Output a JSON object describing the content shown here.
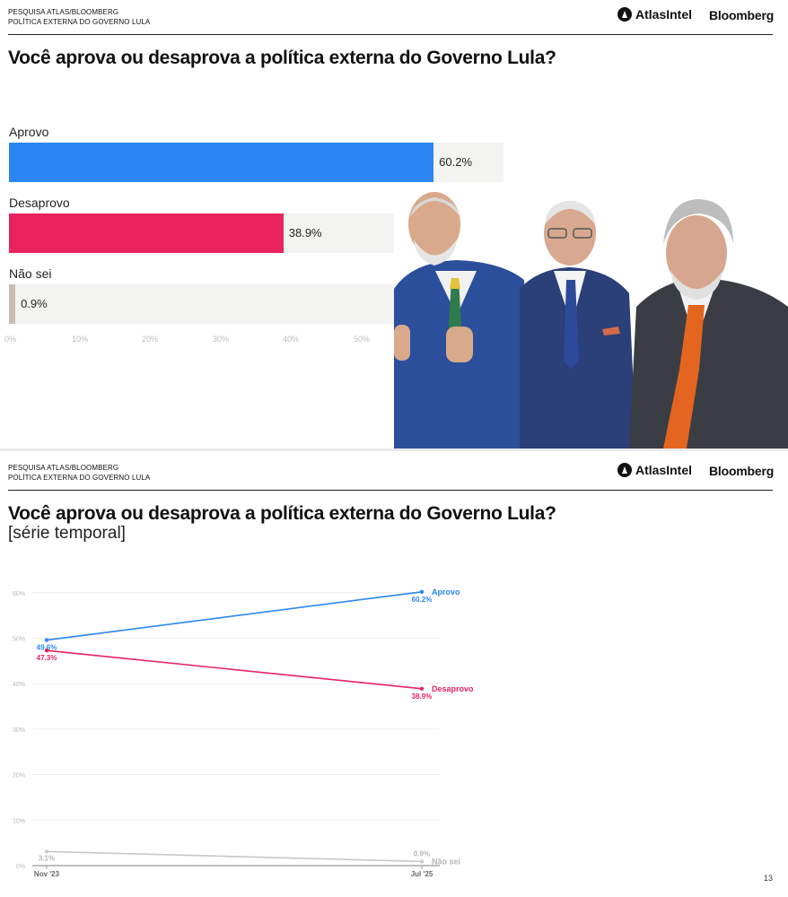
{
  "header": {
    "kicker_line1": "PESQUISA ATLAS/BLOOMBERG",
    "kicker_line2": "POLÍTICA EXTERNA DO GOVERNO LULA",
    "brand_atlas": "AtlasIntel",
    "brand_bloomberg": "Bloomberg"
  },
  "slide1": {
    "title": "Você aprova ou desaprova a política externa do Governo Lula?"
  },
  "slide2": {
    "title": "Você aprova ou desaprova a política externa do Governo Lula?",
    "subtitle": "[série temporal]"
  },
  "page_number": "13",
  "colors": {
    "aprovo": "#2b86f3",
    "desaprovo": "#e8235f",
    "nao_sei": "#c9bcb2",
    "nao_sei_line": "#c8c8c8"
  },
  "chart_data": [
    {
      "type": "bar",
      "orientation": "horizontal",
      "categories": [
        "Aprovo",
        "Desaprovo",
        "Não sei"
      ],
      "values": [
        60.2,
        38.9,
        0.9
      ],
      "value_labels": [
        "60.2%",
        "38.9%",
        "0.9%"
      ],
      "xlim": [
        0,
        70
      ],
      "x_ticks": [
        "0%",
        "10%",
        "20%",
        "30%",
        "40%",
        "50%"
      ]
    },
    {
      "type": "line",
      "x": [
        "Nov '23",
        "Jul '25"
      ],
      "ylim": [
        0,
        60
      ],
      "y_ticks": [
        "0%",
        "10%",
        "20%",
        "30%",
        "40%",
        "50%",
        "60%"
      ],
      "grid": true,
      "series": [
        {
          "name": "Aprovo",
          "values": [
            49.6,
            60.2
          ],
          "labels": [
            "49.6%",
            "60.2%"
          ]
        },
        {
          "name": "Desaprovo",
          "values": [
            47.3,
            38.9
          ],
          "labels": [
            "47.3%",
            "38.9%"
          ]
        },
        {
          "name": "Não sei",
          "values": [
            3.1,
            0.9
          ],
          "labels": [
            "3.1%",
            "0.9%"
          ]
        }
      ]
    }
  ]
}
